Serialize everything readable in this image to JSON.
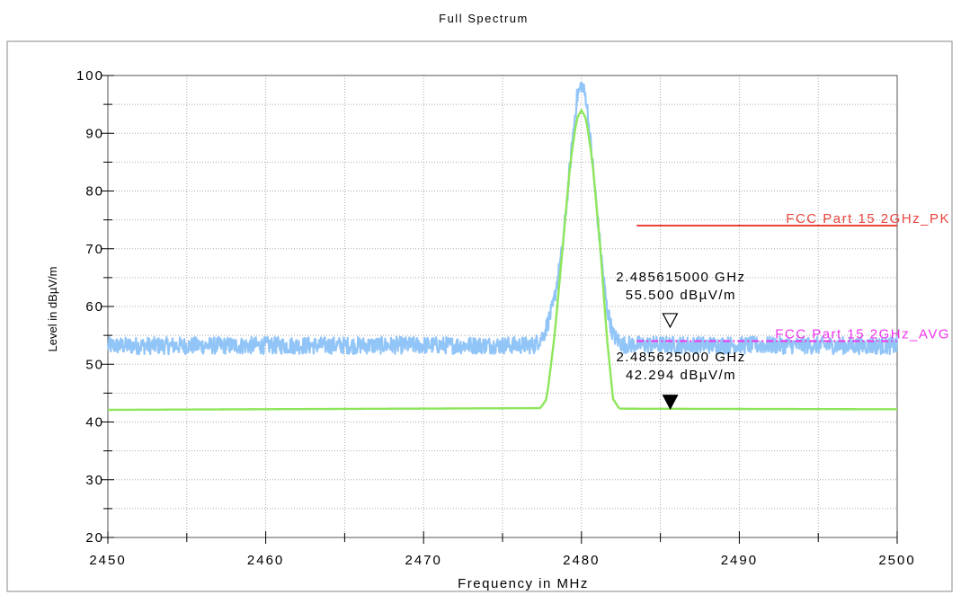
{
  "chart_data": {
    "type": "line",
    "title": "Full Spectrum",
    "xlabel": "Frequency in MHz",
    "ylabel": "Level in dBµV/m",
    "xlim": [
      2450,
      2500
    ],
    "ylim": [
      20,
      100
    ],
    "x_ticks": [
      2450,
      2460,
      2470,
      2480,
      2490,
      2500
    ],
    "y_ticks": [
      20,
      30,
      40,
      50,
      60,
      70,
      80,
      90,
      100
    ],
    "grid": true,
    "series": [
      {
        "color": "#92c5f7",
        "noise": true,
        "points": [
          [
            2450,
            53.2
          ],
          [
            2477,
            53.3
          ],
          [
            2477.6,
            55
          ],
          [
            2478.2,
            60
          ],
          [
            2478.8,
            70
          ],
          [
            2479.3,
            85
          ],
          [
            2479.7,
            96
          ],
          [
            2480.0,
            98.5
          ],
          [
            2480.3,
            96
          ],
          [
            2480.7,
            85
          ],
          [
            2481.2,
            70
          ],
          [
            2481.6,
            60
          ],
          [
            2482.0,
            55
          ],
          [
            2482.6,
            53.4
          ],
          [
            2500,
            53.2
          ]
        ]
      },
      {
        "color": "#8ee65c",
        "noise": false,
        "points": [
          [
            2450,
            42.1
          ],
          [
            2477.4,
            42.4
          ],
          [
            2477.8,
            44
          ],
          [
            2478.3,
            55
          ],
          [
            2478.8,
            70
          ],
          [
            2479.3,
            85
          ],
          [
            2479.7,
            92.5
          ],
          [
            2480.0,
            94
          ],
          [
            2480.3,
            92.5
          ],
          [
            2480.7,
            85
          ],
          [
            2481.2,
            70
          ],
          [
            2481.6,
            55
          ],
          [
            2482.0,
            44
          ],
          [
            2482.4,
            42.3
          ],
          [
            2500,
            42.2
          ]
        ]
      }
    ],
    "limits": [
      {
        "label": "FCC Part 15 2GHz_PK",
        "value": 74,
        "x_start": 2483.5,
        "color": "#e8433c",
        "style": "solid"
      },
      {
        "label": "FCC Part 15 2GHz_AVG",
        "value": 54,
        "x_start": 2483.5,
        "color": "#ee33ee",
        "style": "dashdot"
      }
    ],
    "markers": [
      {
        "freq_text": "2.485615000 GHz",
        "level_text": "55.500 dBµV/m",
        "x": 2485.615,
        "y": 55.5,
        "filled": false
      },
      {
        "freq_text": "2.485625000 GHz",
        "level_text": "42.294 dBµV/m",
        "x": 2485.625,
        "y": 42.294,
        "filled": true
      }
    ]
  }
}
